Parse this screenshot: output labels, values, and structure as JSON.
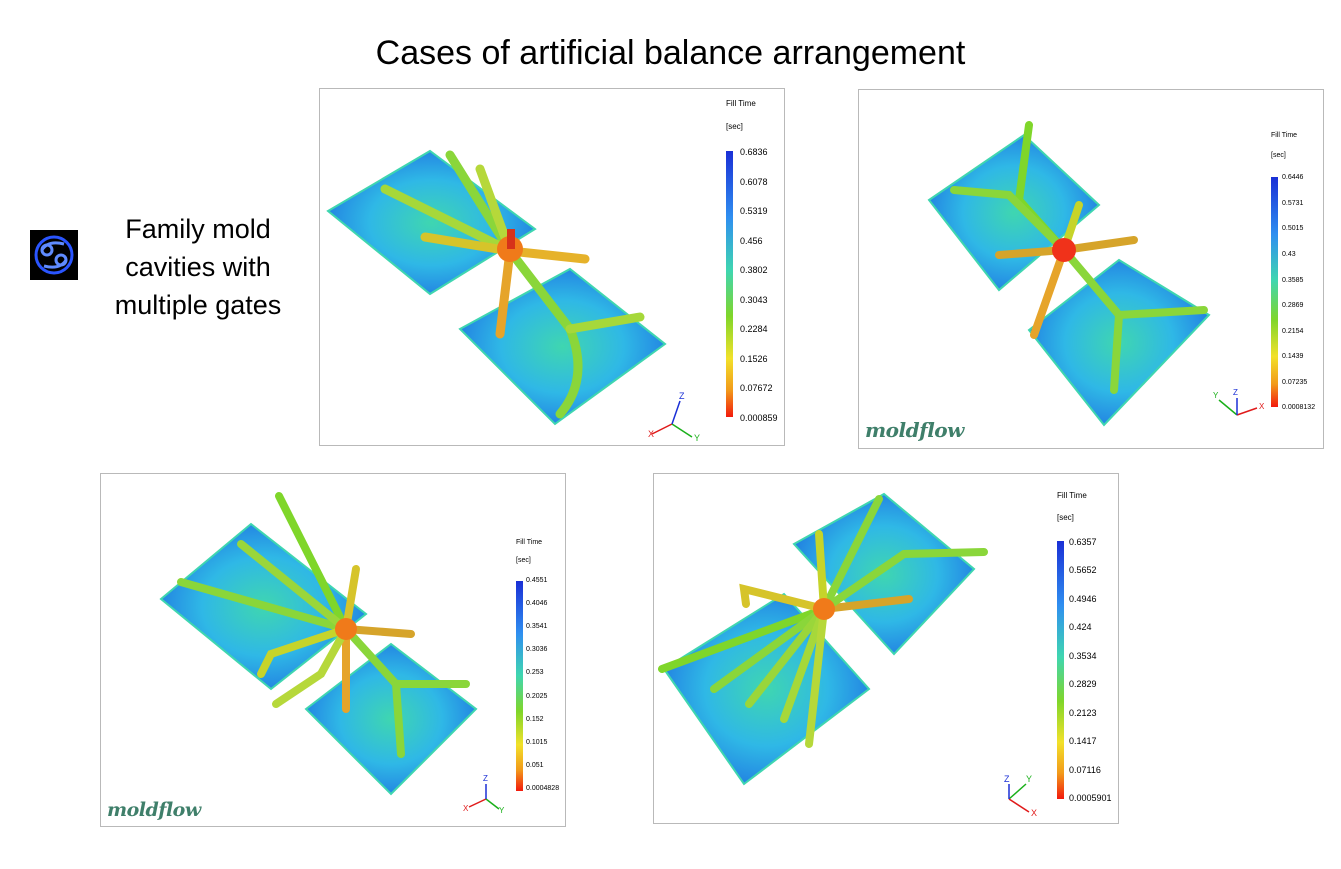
{
  "slide": {
    "title": "Cases of artificial balance arrangement",
    "side_text": [
      "Family mold",
      "cavities with",
      "multiple gates"
    ]
  },
  "panels": [
    {
      "legend_title": "Fill Time",
      "legend_unit": "[sec]",
      "scale": [
        "0.6836",
        "0.6078",
        "0.5319",
        "0.456",
        "0.3802",
        "0.3043",
        "0.2284",
        "0.1526",
        "0.07672",
        "0.000859"
      ],
      "axes": [
        "X",
        "Y",
        "Z"
      ]
    },
    {
      "legend_title": "Fill Time",
      "legend_unit": "[sec]",
      "scale": [
        "0.6446",
        "0.5731",
        "0.5015",
        "0.43",
        "0.3585",
        "0.2869",
        "0.2154",
        "0.1439",
        "0.07235",
        "0.0008132"
      ],
      "axes": [
        "X",
        "Y",
        "Z"
      ],
      "logo": "moldflow"
    },
    {
      "legend_title": "Fill Time",
      "legend_unit": "[sec]",
      "scale": [
        "0.4551",
        "0.4046",
        "0.3541",
        "0.3036",
        "0.253",
        "0.2025",
        "0.152",
        "0.1015",
        "0.051",
        "0.0004828"
      ],
      "axes": [
        "X",
        "Y",
        "Z"
      ],
      "logo": "moldflow"
    },
    {
      "legend_title": "Fill Time",
      "legend_unit": "[sec]",
      "scale": [
        "0.6357",
        "0.5652",
        "0.4946",
        "0.424",
        "0.3534",
        "0.2829",
        "0.2123",
        "0.1417",
        "0.07116",
        "0.0005901"
      ],
      "axes": [
        "X",
        "Y",
        "Z"
      ]
    }
  ],
  "colors": {
    "scale_top": "#1a2fd6",
    "scale_mid": "#3fd6b0",
    "scale_green": "#7fd62a",
    "scale_yellow": "#f2e12a",
    "scale_bottom": "#f21a0d",
    "plate": "#2fa0e6",
    "logo": "#3f7f6a"
  }
}
